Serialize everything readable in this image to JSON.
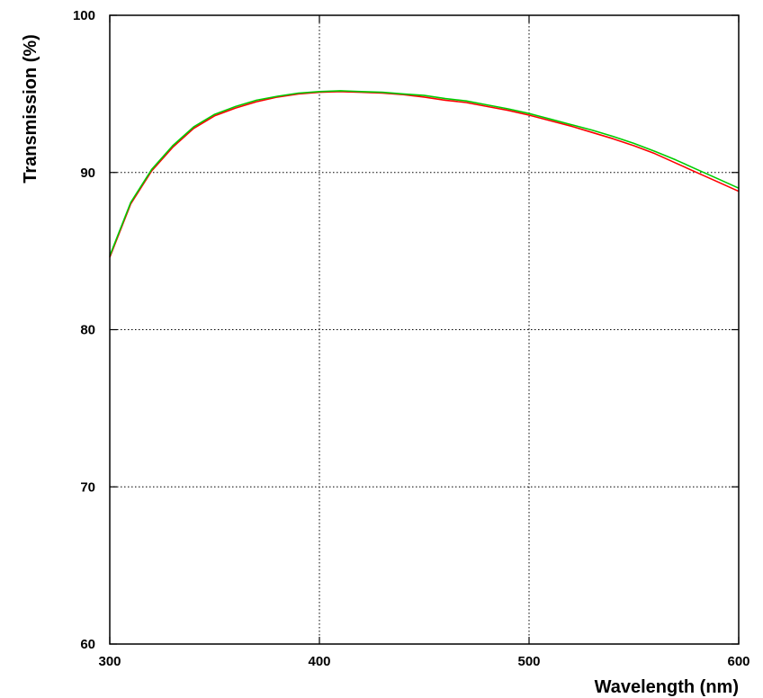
{
  "chart_data": {
    "type": "line",
    "title": "",
    "xlabel": "Wavelength (nm)",
    "ylabel": "Transmission (%)",
    "xlim": [
      300,
      600
    ],
    "ylim": [
      60,
      100
    ],
    "x_ticks": [
      300,
      400,
      500,
      600
    ],
    "y_ticks": [
      60,
      70,
      80,
      90,
      100
    ],
    "grid": true,
    "series": [
      {
        "color": "#ff0000",
        "x": [
          300,
          310,
          320,
          330,
          340,
          350,
          360,
          370,
          380,
          390,
          400,
          410,
          420,
          430,
          440,
          450,
          460,
          470,
          480,
          490,
          500,
          510,
          520,
          530,
          540,
          550,
          560,
          570,
          580,
          590,
          600
        ],
        "y": [
          84.6,
          88.0,
          90.1,
          91.6,
          92.8,
          93.6,
          94.1,
          94.5,
          94.8,
          95.0,
          95.1,
          95.15,
          95.1,
          95.05,
          94.95,
          94.8,
          94.6,
          94.45,
          94.2,
          93.95,
          93.65,
          93.3,
          92.95,
          92.55,
          92.15,
          91.7,
          91.2,
          90.6,
          90.0,
          89.4,
          88.8
        ]
      },
      {
        "color": "#00cc00",
        "x": [
          300,
          310,
          320,
          330,
          340,
          350,
          360,
          370,
          380,
          390,
          400,
          410,
          420,
          430,
          440,
          450,
          460,
          470,
          480,
          490,
          500,
          510,
          520,
          530,
          540,
          550,
          560,
          570,
          580,
          590,
          600
        ],
        "y": [
          84.7,
          88.1,
          90.2,
          91.7,
          92.9,
          93.7,
          94.2,
          94.6,
          94.85,
          95.05,
          95.15,
          95.2,
          95.15,
          95.1,
          95.0,
          94.9,
          94.7,
          94.55,
          94.3,
          94.05,
          93.75,
          93.4,
          93.05,
          92.7,
          92.3,
          91.85,
          91.35,
          90.8,
          90.2,
          89.6,
          89.0
        ]
      }
    ]
  }
}
